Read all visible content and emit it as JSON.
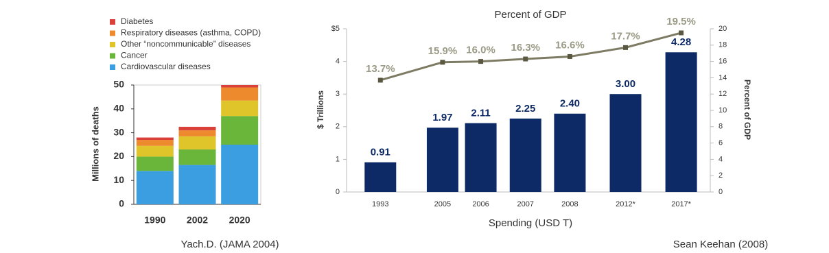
{
  "chart_data": [
    {
      "type": "stacked_bar",
      "y_label": "Millions of deaths",
      "source": "Yach.D. (JAMA 2004)",
      "categories": [
        "1990",
        "2002",
        "2020"
      ],
      "series": [
        {
          "name": "Diabetes",
          "color": "#d9413a",
          "values": [
            1,
            1.5,
            1
          ]
        },
        {
          "name": "Respiratory diseases (asthma, COPD)",
          "color": "#ee8a2e",
          "values": [
            2.5,
            2.5,
            5.5
          ]
        },
        {
          "name": "Other “noncommunicable” diseases",
          "color": "#e0c52a",
          "values": [
            4.5,
            5.5,
            6.5
          ]
        },
        {
          "name": "Cancer",
          "color": "#6ab63a",
          "values": [
            6,
            6.5,
            12
          ]
        },
        {
          "name": "Cardiovascular diseases",
          "color": "#3b9ee0",
          "values": [
            14,
            16.5,
            25
          ]
        }
      ],
      "ylim": [
        0,
        50
      ],
      "yticks": [
        0,
        10,
        20,
        30,
        40,
        50
      ]
    },
    {
      "type": "bar_line",
      "title": "Percent of GDP",
      "x_label": "Spending (USD T)",
      "y_label": "$ Trillions",
      "y2_label": "Percent of GDP",
      "source": "Sean  Keehan (2008)",
      "categories": [
        "1993",
        "2005",
        "2006",
        "2007",
        "2008",
        "2012*",
        "2017*"
      ],
      "series": [
        {
          "name": "$ Trillions",
          "color": "#0d2a66",
          "values": [
            0.91,
            1.97,
            2.11,
            2.25,
            2.4,
            3.0,
            4.28
          ],
          "value_labels": [
            "0.91",
            "1.97",
            "2.11",
            "2.25",
            "2.40",
            "3.00",
            "4.28"
          ]
        },
        {
          "name": "Percent of GDP",
          "color": "#7d7b63",
          "axis": "y2",
          "values": [
            13.7,
            15.9,
            16.0,
            16.3,
            16.6,
            17.7,
            19.5
          ],
          "value_labels": [
            "13.7%",
            "15.9%",
            "16.0%",
            "16.3%",
            "16.6%",
            "17.7%",
            "19.5%"
          ]
        }
      ],
      "ylim": [
        0,
        5
      ],
      "yticks": [
        0,
        1,
        2,
        3,
        4,
        {
          "value": 5,
          "label": "$5"
        }
      ],
      "y2lim": [
        0,
        20
      ],
      "y2ticks": [
        0,
        2,
        4,
        6,
        8,
        10,
        12,
        14,
        16,
        18,
        20
      ]
    }
  ]
}
